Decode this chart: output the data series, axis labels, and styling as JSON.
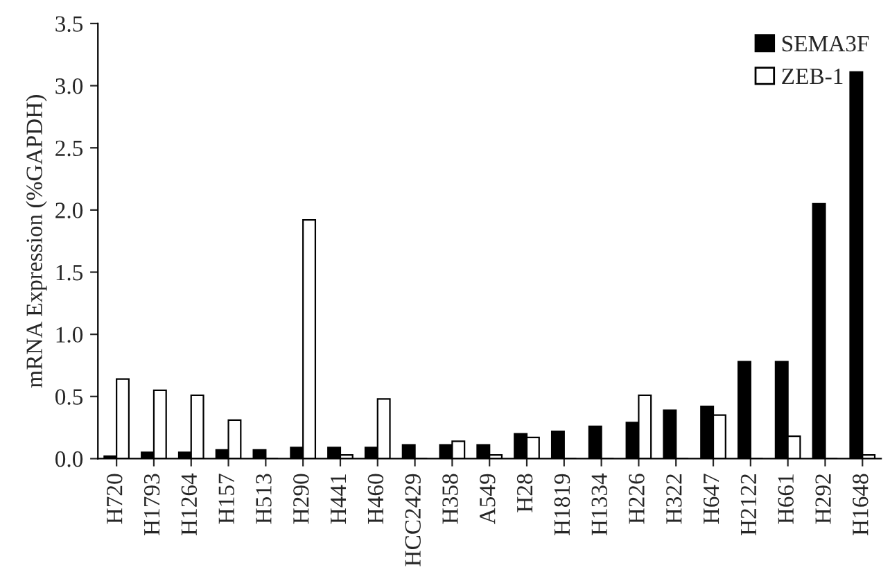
{
  "chart_data": {
    "type": "bar",
    "ylabel": "mRNA Expression (%GAPDH)",
    "categories": [
      "H720",
      "H1793",
      "H1264",
      "H157",
      "H513",
      "H290",
      "H441",
      "H460",
      "HCC2429",
      "H358",
      "A549",
      "H28",
      "H1819",
      "H1334",
      "H226",
      "H322",
      "H647",
      "H2122",
      "H661",
      "H292",
      "H1648"
    ],
    "series": [
      {
        "name": "SEMA3F",
        "color": "#000000",
        "values": [
          0.02,
          0.05,
          0.05,
          0.07,
          0.07,
          0.09,
          0.09,
          0.09,
          0.11,
          0.11,
          0.11,
          0.2,
          0.22,
          0.26,
          0.29,
          0.39,
          0.42,
          0.78,
          0.78,
          2.05,
          3.11
        ]
      },
      {
        "name": "ZEB-1",
        "color": "#ffffff",
        "values": [
          0.64,
          0.55,
          0.51,
          0.31,
          0,
          1.92,
          0.03,
          0.48,
          0,
          0.14,
          0.03,
          0.17,
          0,
          0,
          0.51,
          0,
          0.35,
          0,
          0.18,
          0,
          0.03
        ]
      }
    ],
    "ylim": [
      0,
      3.5
    ],
    "yticks": [
      {
        "value": 0,
        "label": "0.0"
      },
      {
        "value": 0.5,
        "label": "0.5"
      },
      {
        "value": 1,
        "label": "1.0"
      },
      {
        "value": 1.5,
        "label": "1.5"
      },
      {
        "value": 2,
        "label": "2.0"
      },
      {
        "value": 2.5,
        "label": "2.5"
      },
      {
        "value": 3,
        "label": "3.0"
      },
      {
        "value": 3.5,
        "label": "3.5"
      }
    ],
    "legend": "top right",
    "grid": false
  }
}
